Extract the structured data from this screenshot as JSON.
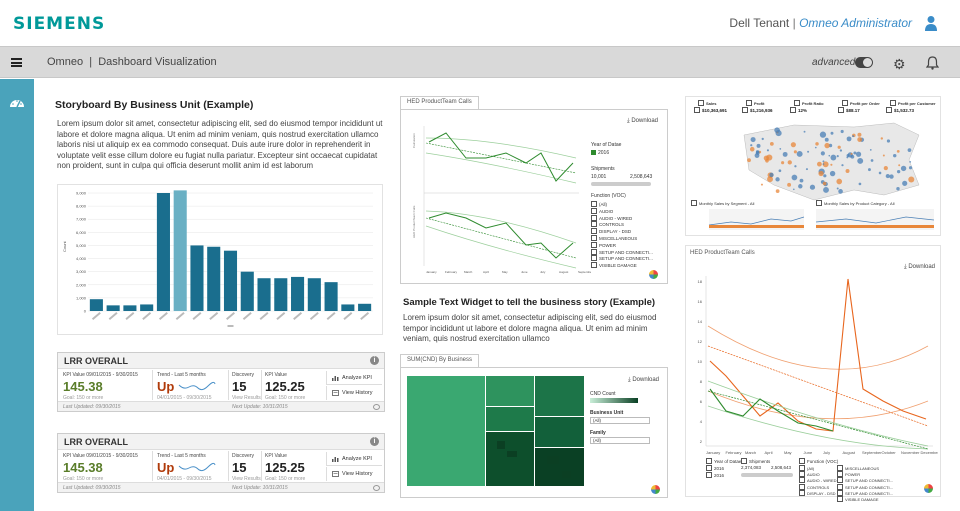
{
  "header": {
    "logo": "SIEMENS",
    "tenant": "Dell Tenant",
    "separator": "|",
    "role": "Omneo Administrator"
  },
  "bar": {
    "app": "Omneo",
    "separator": "|",
    "page": "Dashboard Visualization",
    "advanced": "advanced"
  },
  "story": {
    "title": "Storyboard By Business Unit (Example)",
    "body": "Lorem ipsum dolor sit amet, consectetur adipiscing elit, sed do eiusmod tempor incididunt ut labore et dolore magna aliqua. Ut enim ad minim veniam, quis nostrud exercitation ullamco laboris nisi ut aliquip ex ea commodo consequat. Duis aute irure dolor in reprehenderit in voluptate velit esse cillum dolore eu fugiat nulla pariatur. Excepteur sint occaecat cupidatat non proident, sunt in culpa qui officia deserunt mollit anim id est laborum"
  },
  "chart_data": [
    {
      "type": "bar",
      "ylim": [
        0,
        9000
      ],
      "yticks": [
        "9,000",
        "8,000",
        "7,000",
        "6,000",
        "5,000",
        "4,000",
        "3,000",
        "2,000",
        "1,000",
        "0"
      ],
      "ylabel": "Count",
      "values": [
        900,
        430,
        430,
        500,
        9000,
        9200,
        5000,
        4900,
        4600,
        3000,
        2500,
        2500,
        2600,
        2500,
        2200,
        500,
        550
      ],
      "highlight": 5,
      "color": "#1a6e8e",
      "highlight_color": "#6ab0c4"
    },
    {
      "type": "line",
      "title": "HED ProductTeam Calls",
      "months": [
        "January",
        "February",
        "March",
        "April",
        "May",
        "June",
        "July",
        "August",
        "September"
      ]
    },
    {
      "type": "line",
      "title": "HED ProductTeam Calls",
      "xlabels": [
        "January",
        "February",
        "March",
        "April",
        "May",
        "June",
        "July",
        "August",
        "September",
        "October",
        "November",
        "December"
      ],
      "ylabels": [
        "18",
        "16",
        "14",
        "12",
        "10",
        "8",
        "6",
        "4",
        "2"
      ]
    }
  ],
  "kpis": [
    {
      "title": "LRR OVERALL",
      "kpi_label": "KPI Value 09/01/2015 - 9/30/2015",
      "value": "145.38",
      "goal": "Goal: 150 or more",
      "trend_label": "Trend - Last 5 months",
      "trend": "Up",
      "trend_dates": "04/01/2015 - 09/30/2015",
      "disc_label": "Discovery",
      "disc_value": "15",
      "disc_sub": "View Results",
      "kpi2_label": "KPI Value",
      "kpi2_value": "125.25",
      "kpi2_sub": "Goal: 150 or more",
      "analyze": "Analyze KPI",
      "history": "View History",
      "updated1": "Last Updated: 09/30/2015",
      "updated2": "Next Update: 10/31/2015"
    },
    {
      "title": "LRR OVERALL",
      "kpi_label": "KPI Value 09/01/2015 - 9/30/2015",
      "value": "145.38",
      "goal": "Goal: 150 or more",
      "trend_label": "Trend - Last 5 months",
      "trend": "Up",
      "trend_dates": "04/01/2015 - 09/30/2015",
      "disc_label": "Discovery",
      "disc_value": "15",
      "disc_sub": "View Results",
      "kpi2_label": "KPI Value",
      "kpi2_value": "125.25",
      "kpi2_sub": "Goal: 150 or more",
      "analyze": "Analyze KPI",
      "history": "View History",
      "updated1": "Last Updated: 09/30/2015",
      "updated2": "Next Update: 10/31/2015"
    }
  ],
  "hed1": {
    "tab": "HED ProductTeam Calls",
    "download": "Download",
    "year_label": "Year of Datae",
    "year": "2016",
    "ship_label": "Shipments",
    "ship_min": "10,001",
    "ship_max": "2,508,643",
    "func_label": "Function (VOC)",
    "functions": [
      "(All)",
      "AUDIO",
      "AUDIO - WIRED",
      "CONTROLS",
      "DISPLAY - DSD",
      "MISCELLANEOUS",
      "POWER",
      "SETUP AND CONNECTI...",
      "SETUP AND CONNECTI...",
      "VISIBLE DAMAGE"
    ]
  },
  "sample": {
    "title": "Sample Text Widget to tell the business story  (Example)",
    "body": "Lorem ipsum dolor sit amet, consectetur adipiscing elit, sed do eiusmod tempor incididunt ut labore et dolore magna aliqua. Ut enim ad minim veniam, quis nostrud exercitation ullamco"
  },
  "treemap": {
    "tab": "SUM(CND) By Business",
    "download": "Download",
    "cnd": "CND Count",
    "bu_label": "Business Unit",
    "bu": "(All)",
    "fam_label": "Family",
    "fam": "(All)"
  },
  "map": {
    "headers": [
      "Sales",
      "Profit",
      "Profit Ratio",
      "Profit per Order",
      "Profit per Customer"
    ],
    "values": [
      "$10,363,691",
      "$1,216,936",
      "12%",
      "$88.17",
      "$1,532.73"
    ],
    "seg": "Monthly Sales by Segment - All",
    "cat": "Monthly Sales by Product Category - All"
  },
  "hed2": {
    "tab": "HED ProductTeam Calls",
    "download": "Download",
    "year_label": "Year of Datae",
    "ship_label": "Shipments",
    "ship_min": "2,374,083",
    "ship_max": "2,508,643",
    "func_label": "Function (VOC)",
    "years": [
      "2016",
      "2016"
    ],
    "functions": [
      "(All)",
      "AUDIO",
      "AUDIO - WIRED",
      "CONTROLS",
      "DISPLAY - DSD",
      "MISCELLANEOUS",
      "POWER",
      "SETUP AND CONNECTI...",
      "SETUP AND CONNECTI...",
      "SETUP AND CONNECTI...",
      "VISIBLE DAMAGE"
    ]
  }
}
